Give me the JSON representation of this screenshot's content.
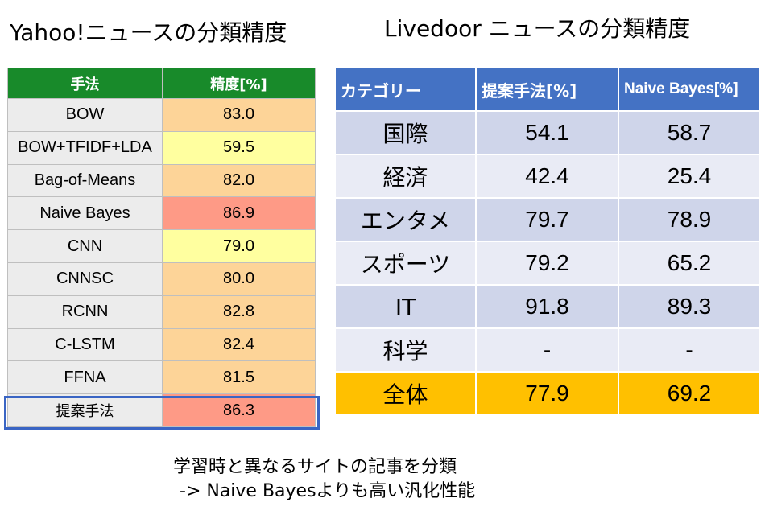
{
  "yahoo": {
    "title": "Yahoo!ニュースの分類精度",
    "header": {
      "method": "手法",
      "accuracy": "精度[%]"
    },
    "rows": [
      {
        "method": "BOW",
        "accuracy": "83.0",
        "color": "#fdd498"
      },
      {
        "method": "BOW+TFIDF+LDA",
        "accuracy": "59.5",
        "color": "#ffff9f"
      },
      {
        "method": "Bag-of-Means",
        "accuracy": "82.0",
        "color": "#fdd498"
      },
      {
        "method": "Naive Bayes",
        "accuracy": "86.9",
        "color": "#fe9a86"
      },
      {
        "method": "CNN",
        "accuracy": "79.0",
        "color": "#ffff9f"
      },
      {
        "method": "CNNSC",
        "accuracy": "80.0",
        "color": "#fdd498"
      },
      {
        "method": "RCNN",
        "accuracy": "82.8",
        "color": "#fdd498"
      },
      {
        "method": "C-LSTM",
        "accuracy": "82.4",
        "color": "#fdd498"
      },
      {
        "method": "FFNA",
        "accuracy": "81.5",
        "color": "#fdd498"
      },
      {
        "method": "提案手法",
        "accuracy": "86.3",
        "color": "#fe9a86"
      }
    ]
  },
  "livedoor": {
    "title": "Livedoor ニュースの分類精度",
    "header": {
      "category": "カテゴリー",
      "proposed": "提案手法[%]",
      "naive_bayes": "Naive Bayes[%]"
    },
    "rows": [
      {
        "category": "国際",
        "proposed": "54.1",
        "naive_bayes": "58.7"
      },
      {
        "category": "経済",
        "proposed": "42.4",
        "naive_bayes": "25.4"
      },
      {
        "category": "エンタメ",
        "proposed": "79.7",
        "naive_bayes": "78.9"
      },
      {
        "category": "スポーツ",
        "proposed": "79.2",
        "naive_bayes": "65.2"
      },
      {
        "category": "IT",
        "proposed": "91.8",
        "naive_bayes": "89.3"
      },
      {
        "category": "科学",
        "proposed": "-",
        "naive_bayes": "-"
      }
    ],
    "total": {
      "category": "全体",
      "proposed": "77.9",
      "naive_bayes": "69.2"
    }
  },
  "note": {
    "line1": "学習時と異なるサイトの記事を分類",
    "line2": "-> Naive Bayesよりも高い汎化性能"
  }
}
